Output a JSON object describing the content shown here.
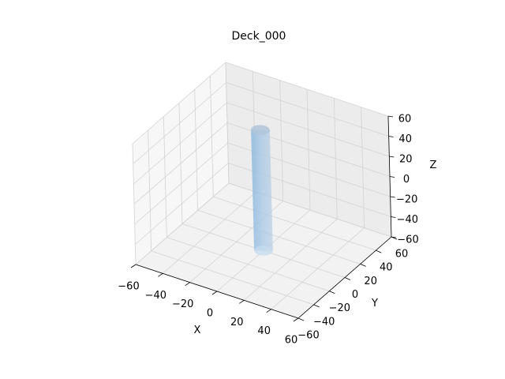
{
  "chart_data": {
    "type": "3d-surface",
    "title": "Deck_000",
    "xlabel": "X",
    "ylabel": "Y",
    "zlabel": "Z",
    "xlim": [
      -60,
      60
    ],
    "ylim": [
      -60,
      60
    ],
    "zlim": [
      -60,
      60
    ],
    "xticks": [
      "−60",
      "−40",
      "−20",
      "0",
      "20",
      "40",
      "60"
    ],
    "yticks": [
      "−60",
      "−40",
      "−20",
      "0",
      "20",
      "40",
      "60"
    ],
    "zticks": [
      "−60",
      "−40",
      "−20",
      "0",
      "20",
      "40",
      "60"
    ],
    "grid": true,
    "surface": {
      "shape": "cylinder",
      "center": [
        0,
        0
      ],
      "radius": 6,
      "z_range": [
        -60,
        60
      ],
      "color": "#a6c8e6"
    }
  }
}
